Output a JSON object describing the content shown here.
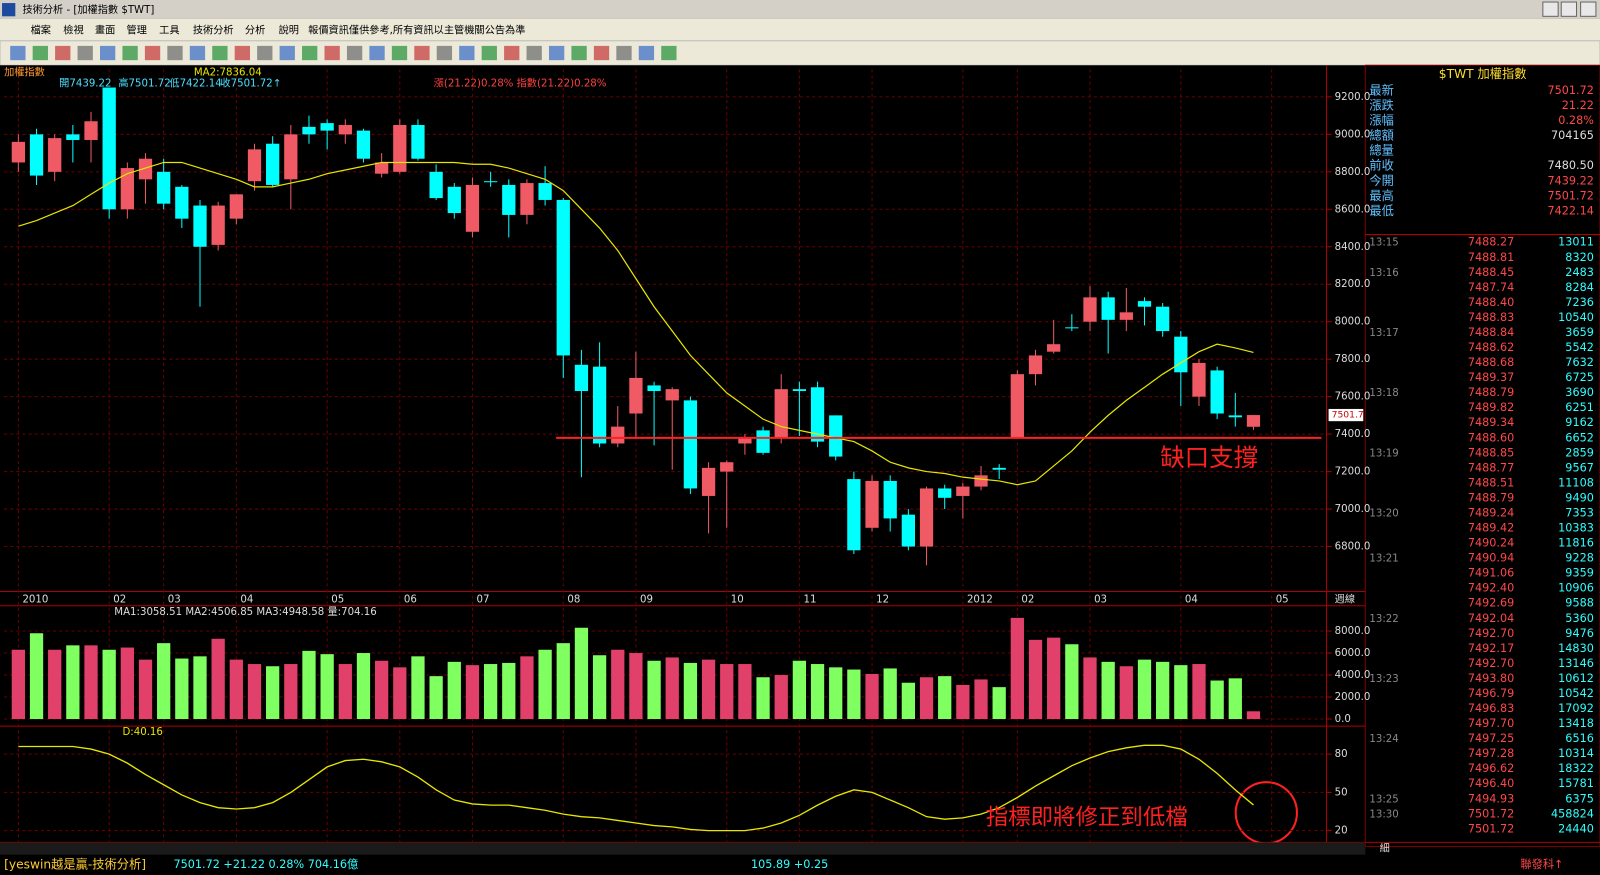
{
  "window": {
    "title": "技術分析 - [加權指數 $TWT]"
  },
  "menu": [
    "檔案",
    "檢視",
    "畫面",
    "管理",
    "工具",
    "技術分析",
    "分析",
    "說明",
    "報價資訊僅供參考,所有資訊以主管機關公告為準"
  ],
  "chart_data": [
    {
      "type": "candlestick",
      "title": "加權指數",
      "header": [
        "開7439.22",
        "高7501.72",
        "低7422.14",
        "收7501.72↑"
      ],
      "change_text": "漲(21.22)0.28% 指數(21.22)0.28%",
      "x_axis_label": "週線",
      "up_color": "#f05a64",
      "down_color": "#00ffff",
      "categories": [
        "2010",
        null,
        null,
        null,
        null,
        "02",
        null,
        null,
        "03",
        null,
        null,
        null,
        "04",
        null,
        null,
        null,
        null,
        "05",
        null,
        null,
        null,
        "06",
        null,
        null,
        null,
        "07",
        null,
        null,
        null,
        null,
        "08",
        null,
        null,
        null,
        "09",
        null,
        null,
        null,
        null,
        "10",
        null,
        null,
        null,
        "11",
        null,
        null,
        null,
        "12",
        null,
        null,
        null,
        null,
        "2012",
        null,
        null,
        "02",
        null,
        null,
        null,
        "03",
        null,
        null,
        null,
        null,
        "04",
        null,
        null,
        null,
        null,
        "05"
      ],
      "open": [
        8850,
        9000,
        8800,
        9000,
        8970,
        9250,
        8600,
        8760,
        8800,
        8720,
        8620,
        8410,
        8550,
        8750,
        8950,
        8760,
        9040,
        9060,
        9000,
        9020,
        8790,
        8800,
        9050,
        8800,
        8720,
        8480,
        8750,
        8730,
        8570,
        8740,
        8650,
        7770,
        7760,
        7350,
        7510,
        7660,
        7580,
        7580,
        7070,
        7200,
        7350,
        7420,
        7380,
        7640,
        7650,
        7500,
        7160,
        6900,
        7150,
        6970,
        6800,
        7110,
        7070,
        7120,
        7220,
        7380,
        7720,
        7840,
        7970,
        8000,
        8130,
        8010,
        8110,
        8080,
        7920,
        7600,
        7740,
        7500,
        7439.22,
        null
      ],
      "high": [
        9000,
        9030,
        9000,
        9050,
        9120,
        9250,
        8850,
        8900,
        8870,
        8730,
        8650,
        8640,
        8680,
        8950,
        8990,
        9050,
        9100,
        9080,
        9080,
        9030,
        8900,
        9080,
        9080,
        8840,
        8740,
        8770,
        8800,
        8760,
        8760,
        8830,
        8660,
        7850,
        7890,
        7550,
        7840,
        7680,
        7650,
        7600,
        7250,
        7260,
        7400,
        7440,
        7720,
        7680,
        7680,
        7500,
        7200,
        7180,
        7180,
        7000,
        7120,
        7130,
        7140,
        7230,
        7240,
        7740,
        7850,
        8010,
        8040,
        8190,
        8160,
        8180,
        8130,
        8100,
        7950,
        7800,
        7760,
        7620,
        7501.72,
        null
      ],
      "low": [
        8800,
        8730,
        8750,
        8850,
        8850,
        8550,
        8550,
        8630,
        8600,
        8500,
        8080,
        8380,
        8520,
        8700,
        8720,
        8600,
        8950,
        8920,
        8950,
        8850,
        8770,
        8790,
        8860,
        8650,
        8550,
        8450,
        8720,
        8450,
        8520,
        8620,
        7700,
        7170,
        7330,
        7330,
        7380,
        7340,
        7210,
        7080,
        6870,
        6900,
        7290,
        7290,
        7350,
        7390,
        7330,
        7260,
        6760,
        6880,
        6880,
        6780,
        6700,
        7000,
        6950,
        7100,
        7160,
        7380,
        7660,
        7830,
        7950,
        7950,
        7830,
        7950,
        7980,
        7920,
        7550,
        7550,
        7480,
        7440,
        7422.14,
        null
      ],
      "close": [
        8960,
        8780,
        8980,
        8970,
        9070,
        8600,
        8820,
        8870,
        8630,
        8550,
        8400,
        8620,
        8680,
        8920,
        8730,
        9000,
        9000,
        9020,
        9050,
        8870,
        8850,
        9050,
        8870,
        8660,
        8580,
        8730,
        8750,
        8570,
        8740,
        8650,
        7820,
        7630,
        7350,
        7440,
        7700,
        7630,
        7640,
        7110,
        7220,
        7250,
        7380,
        7300,
        7640,
        7630,
        7360,
        7280,
        6780,
        7150,
        6950,
        6800,
        7110,
        7060,
        7120,
        7180,
        7210,
        7720,
        7820,
        7880,
        7970,
        8130,
        8010,
        8050,
        8080,
        7950,
        7730,
        7780,
        7510,
        7490,
        7501.72,
        null
      ],
      "series": [
        {
          "name": "MA2:7836.04",
          "color": "#e6e600",
          "values": [
            8510,
            8540,
            8580,
            8620,
            8680,
            8740,
            8790,
            8820,
            8850,
            8850,
            8820,
            8790,
            8760,
            8720,
            8720,
            8740,
            8760,
            8790,
            8810,
            8830,
            8850,
            8850,
            8850,
            8850,
            8850,
            8840,
            8840,
            8820,
            8790,
            8760,
            8700,
            8600,
            8500,
            8380,
            8230,
            8080,
            7950,
            7820,
            7720,
            7620,
            7550,
            7480,
            7440,
            7420,
            7400,
            7380,
            7360,
            7310,
            7250,
            7220,
            7200,
            7190,
            7170,
            7160,
            7150,
            7130,
            7150,
            7230,
            7310,
            7410,
            7500,
            7580,
            7650,
            7720,
            7780,
            7840,
            7880,
            7860,
            7836.04,
            null
          ]
        }
      ],
      "annotation": {
        "text": "缺口支撐",
        "value": 7380,
        "color": "#ff2020"
      },
      "ylim": [
        6560,
        9347
      ],
      "yticks": [
        {
          "value": 6800,
          "label": "6800.0"
        },
        {
          "value": 7000,
          "label": "7000.0"
        },
        {
          "value": 7200,
          "label": "7200.0"
        },
        {
          "value": 7400,
          "label": "7400.0"
        },
        {
          "value": 7600,
          "label": "7600.0"
        },
        {
          "value": 7800,
          "label": "7800.0"
        },
        {
          "value": 8000,
          "label": "8000.0"
        },
        {
          "value": 8200,
          "label": "8200.0"
        },
        {
          "value": 8400,
          "label": "8400.0"
        },
        {
          "value": 8600,
          "label": "8600.0"
        },
        {
          "value": 8800,
          "label": "8800.0"
        },
        {
          "value": 9000,
          "label": "9000.0"
        },
        {
          "value": 9200,
          "label": "9200.0"
        }
      ],
      "last_price_label": "7501.7",
      "grid": true
    },
    {
      "type": "bar",
      "title": "MA1:3058.51 MA2:4506.85 MA3:4948.58 量:704.16",
      "up_color": "#e0406a",
      "down_color": "#80ff60",
      "values": [
        6300,
        7800,
        6300,
        6700,
        6700,
        6300,
        6500,
        5400,
        6900,
        5500,
        5700,
        7300,
        5400,
        5000,
        4800,
        5000,
        6200,
        5900,
        5000,
        6000,
        5300,
        4700,
        5700,
        3900,
        5200,
        4900,
        5000,
        5100,
        5700,
        6300,
        6900,
        8300,
        5800,
        6300,
        6000,
        5300,
        5600,
        5100,
        5400,
        5000,
        5000,
        3800,
        4000,
        5300,
        5000,
        4700,
        4500,
        4100,
        4600,
        3300,
        3800,
        3900,
        3100,
        3600,
        2900,
        9200,
        7200,
        7400,
        6800,
        5600,
        5200,
        4800,
        5400,
        5200,
        4900,
        5000,
        3500,
        3700,
        704.16,
        null
      ],
      "ylim": [
        -644,
        10299
      ],
      "yticks": [
        {
          "value": 0,
          "label": "0.0"
        },
        {
          "value": 2000,
          "label": "2000.0"
        },
        {
          "value": 4000,
          "label": "4000.0"
        },
        {
          "value": 6000,
          "label": "6000.0"
        },
        {
          "value": 8000,
          "label": "8000.0"
        }
      ],
      "grid": true
    },
    {
      "type": "line",
      "title": "D:40.16",
      "color": "#e6e600",
      "values": [
        86,
        86,
        86,
        86,
        84,
        80,
        73,
        64,
        56,
        48,
        42,
        38,
        37,
        38,
        42,
        50,
        60,
        70,
        75,
        76,
        74,
        70,
        62,
        52,
        44,
        41,
        40,
        40,
        38,
        36,
        33,
        31,
        30,
        28,
        26,
        24,
        23,
        21,
        20,
        20,
        20,
        22,
        26,
        32,
        40,
        47,
        52,
        50,
        44,
        38,
        31,
        29,
        30,
        33,
        38,
        46,
        55,
        63,
        71,
        77,
        82,
        85,
        87,
        87,
        84,
        76,
        65,
        52,
        40.16,
        null
      ],
      "annotation": {
        "text": "指標即將修正到低檔",
        "color": "#ff2020"
      },
      "ylim": [
        10.8,
        102
      ],
      "yticks": [
        20,
        50,
        80
      ],
      "grid": true
    }
  ],
  "quote": {
    "title": "$TWT 加權指數",
    "rows": [
      [
        "最新",
        "7501.72"
      ],
      [
        "漲跌",
        "21.22"
      ],
      [
        "漲幅",
        "0.28%"
      ],
      [
        "總額",
        "704165"
      ],
      [
        "總量",
        ""
      ],
      [
        "前收",
        "7480.50"
      ],
      [
        "今開",
        "7439.22"
      ],
      [
        "最高",
        "7501.72"
      ],
      [
        "最低",
        "7422.14"
      ]
    ]
  },
  "ticks": {
    "rows": [
      [
        "13:15",
        "7488.27",
        "13011"
      ],
      [
        null,
        "7488.81",
        "8320"
      ],
      [
        "13:16",
        "7488.45",
        "2483"
      ],
      [
        null,
        "7487.74",
        "8284"
      ],
      [
        null,
        "7488.40",
        "7236"
      ],
      [
        null,
        "7488.83",
        "10540"
      ],
      [
        "13:17",
        "7488.84",
        "3659"
      ],
      [
        null,
        "7488.62",
        "5542"
      ],
      [
        null,
        "7488.68",
        "7632"
      ],
      [
        null,
        "7489.37",
        "6725"
      ],
      [
        "13:18",
        "7488.79",
        "3690"
      ],
      [
        null,
        "7489.82",
        "6251"
      ],
      [
        null,
        "7489.34",
        "9162"
      ],
      [
        null,
        "7488.60",
        "6652"
      ],
      [
        "13:19",
        "7488.85",
        "2859"
      ],
      [
        null,
        "7488.77",
        "9567"
      ],
      [
        null,
        "7488.51",
        "11108"
      ],
      [
        null,
        "7488.79",
        "9490"
      ],
      [
        "13:20",
        "7489.24",
        "7353"
      ],
      [
        null,
        "7489.42",
        "10383"
      ],
      [
        null,
        "7490.24",
        "11816"
      ],
      [
        "13:21",
        "7490.94",
        "9228"
      ],
      [
        null,
        "7491.06",
        "9359"
      ],
      [
        null,
        "7492.40",
        "10906"
      ],
      [
        null,
        "7492.69",
        "9588"
      ],
      [
        "13:22",
        "7492.04",
        "5360"
      ],
      [
        null,
        "7492.70",
        "9476"
      ],
      [
        null,
        "7492.17",
        "14830"
      ],
      [
        null,
        "7492.70",
        "13146"
      ],
      [
        "13:23",
        "7493.80",
        "10612"
      ],
      [
        null,
        "7496.79",
        "10542"
      ],
      [
        null,
        "7496.83",
        "17092"
      ],
      [
        null,
        "7497.70",
        "13418"
      ],
      [
        "13:24",
        "7497.25",
        "6516"
      ],
      [
        null,
        "7497.28",
        "10314"
      ],
      [
        null,
        "7496.62",
        "18322"
      ],
      [
        null,
        "7496.40",
        "15781"
      ],
      [
        "13:25",
        "7494.93",
        "6375"
      ],
      [
        "13:30",
        "7501.72",
        "458824"
      ],
      [
        null,
        "7501.72",
        "24440"
      ]
    ]
  },
  "status": {
    "app": "[yeswin越是贏-技術分析]",
    "index": "7501.72 +21.22 0.28% 704.16億",
    "otc": "105.89 +0.25",
    "stock": "聯發科↑",
    "tab": "細"
  }
}
